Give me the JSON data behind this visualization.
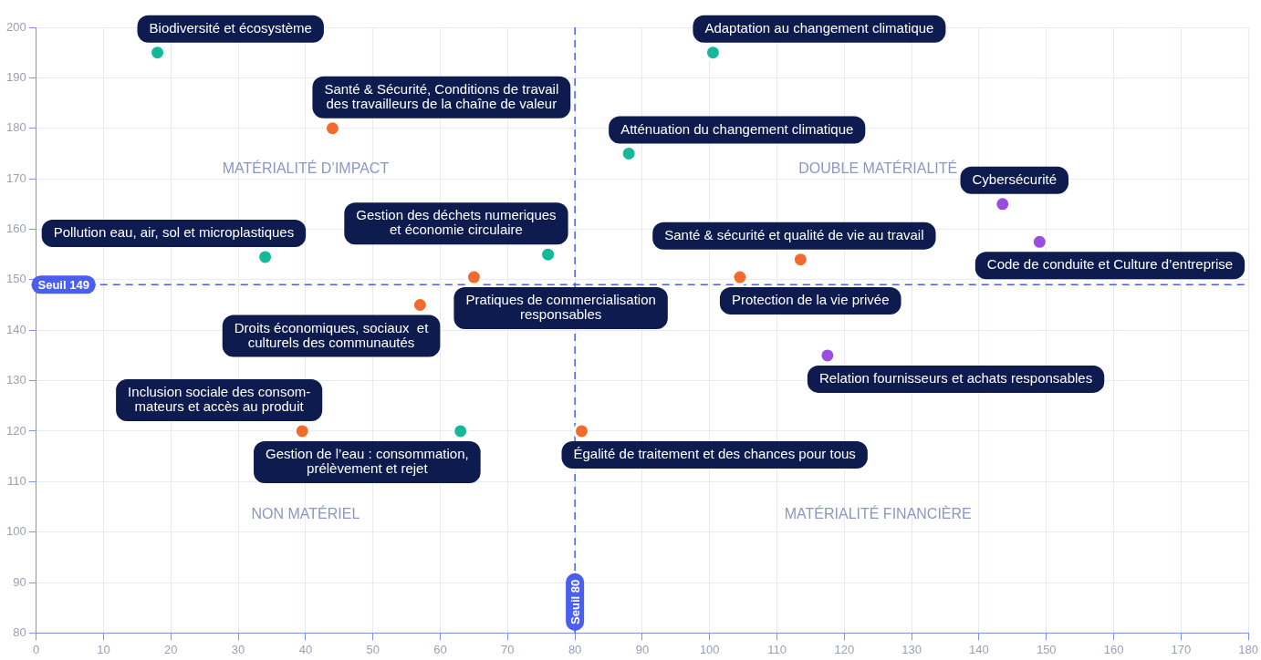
{
  "chart_data": {
    "type": "scatter",
    "xlim": [
      0,
      180
    ],
    "ylim": [
      80,
      200
    ],
    "xticks": [
      0,
      10,
      20,
      30,
      40,
      50,
      60,
      70,
      80,
      90,
      100,
      110,
      120,
      130,
      140,
      150,
      160,
      170,
      180
    ],
    "yticks": [
      80,
      90,
      100,
      110,
      120,
      130,
      140,
      150,
      160,
      170,
      180,
      190,
      200
    ],
    "grid": true,
    "legend": false,
    "marker": "circle",
    "series": [
      {
        "name": "Biodiversité et écosystème",
        "color": "#14b89a",
        "x": [
          18
        ],
        "values": [
          195
        ]
      },
      {
        "name": "Santé & Sécurité, Conditions de travail\ndes travailleurs de la chaîne de valeur",
        "color": "#f26b2d",
        "x": [
          44
        ],
        "values": [
          180
        ]
      },
      {
        "name": "Pollution eau, air, sol et microplastiques",
        "color": "#14b89a",
        "x": [
          34
        ],
        "values": [
          154.5
        ]
      },
      {
        "name": "Gestion des déchets numeriques\net économie circulaire",
        "color": "#14b89a",
        "x": [
          76
        ],
        "values": [
          155
        ]
      },
      {
        "name": "Pratiques de commercialisation\nresponsables",
        "color": "#f26b2d",
        "x": [
          65
        ],
        "values": [
          150.5
        ]
      },
      {
        "name": "Droits économiques, sociaux  et\nculturels des communautés",
        "color": "#f26b2d",
        "x": [
          57
        ],
        "values": [
          145
        ]
      },
      {
        "name": "Inclusion sociale des consom-\nmateurs et accès au produit",
        "color": "#f26b2d",
        "x": [
          39.5
        ],
        "values": [
          120
        ]
      },
      {
        "name": "Gestion de l’eau : consommation,\nprélèvement et rejet",
        "color": "#14b89a",
        "x": [
          63
        ],
        "values": [
          120
        ]
      },
      {
        "name": "Égalité de traitement et des chances pour tous",
        "color": "#f26b2d",
        "x": [
          81
        ],
        "values": [
          120
        ]
      },
      {
        "name": "Adaptation au changement climatique",
        "color": "#14b89a",
        "x": [
          100.5
        ],
        "values": [
          195
        ]
      },
      {
        "name": "Atténuation du changement climatique",
        "color": "#14b89a",
        "x": [
          88
        ],
        "values": [
          175
        ]
      },
      {
        "name": "Cybersécurité",
        "color": "#9b4de0",
        "x": [
          143.5
        ],
        "values": [
          165
        ]
      },
      {
        "name": "Santé & sécurité et qualité de vie au travail",
        "color": "#f26b2d",
        "x": [
          113.5
        ],
        "values": [
          154
        ]
      },
      {
        "name": "Code de conduite et Culture d’entreprise",
        "color": "#9b4de0",
        "x": [
          149
        ],
        "values": [
          157.5
        ]
      },
      {
        "name": "Protection de la vie privée",
        "color": "#f26b2d",
        "x": [
          104.5
        ],
        "values": [
          150.5
        ]
      },
      {
        "name": "Relation fournisseurs et achats responsables",
        "color": "#9b4de0",
        "x": [
          117.5
        ],
        "values": [
          135
        ]
      }
    ],
    "ref_lines": [
      {
        "axis": "y",
        "value": 149,
        "label": "Seuil 149",
        "color": "#4a5ef0",
        "line_style": "dashed"
      },
      {
        "axis": "x",
        "value": 80,
        "label": "Seuil 80",
        "color": "#4a5ef0",
        "line_style": "dashed"
      }
    ],
    "annotations": [
      "MATÉRIALITÉ D’IMPACT",
      "DOUBLE MATÉRIALITÉ",
      "NON MATÉRIEL",
      "MATÉRIALITÉ FINANCIÈRE"
    ]
  }
}
